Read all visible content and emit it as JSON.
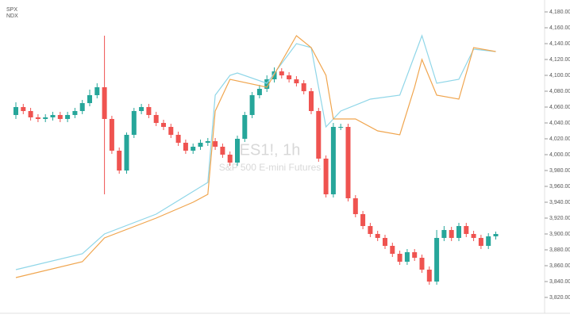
{
  "chart_data": {
    "type": "candlestick",
    "title": "ES1!, 1h",
    "subtitle": "S&P 500 E-mini Futures",
    "ylim": [
      3800,
      4190
    ],
    "yticks": [
      {
        "value": 3820,
        "label": "3,820.00"
      },
      {
        "value": 3840,
        "label": "3,840.00"
      },
      {
        "value": 3860,
        "label": "3,860.00"
      },
      {
        "value": 3880,
        "label": "3,880.00"
      },
      {
        "value": 3900,
        "label": "3,900.00"
      },
      {
        "value": 3920,
        "label": "3,920.00"
      },
      {
        "value": 3940,
        "label": "3,940.00"
      },
      {
        "value": 3960,
        "label": "3,960.00"
      },
      {
        "value": 3980,
        "label": "3,980.00"
      },
      {
        "value": 4000,
        "label": "4,000.00"
      },
      {
        "value": 4020,
        "label": "4,020.00"
      },
      {
        "value": 4040,
        "label": "4,040.00"
      },
      {
        "value": 4060,
        "label": "4,060.00"
      },
      {
        "value": 4080,
        "label": "4,080.00"
      },
      {
        "value": 4100,
        "label": "4,100.00"
      },
      {
        "value": 4120,
        "label": "4,120.00"
      },
      {
        "value": 4140,
        "label": "4,140.00"
      },
      {
        "value": 4160,
        "label": "4,160.00"
      },
      {
        "value": 4180,
        "label": "4,180.00"
      }
    ],
    "up_color": "#26a69a",
    "down_color": "#ef5350",
    "open": [
      4050,
      4060,
      4055,
      4047,
      4045,
      4047,
      4050,
      4045,
      4050,
      4055,
      4065,
      4075,
      4085,
      4045,
      4005,
      3980,
      4025,
      4055,
      4060,
      4050,
      4040,
      4035,
      4025,
      4015,
      4005,
      4010,
      4015,
      4017,
      4010,
      4000,
      3990,
      4020,
      4050,
      4075,
      4083,
      4095,
      4105,
      4100,
      4095,
      4090,
      4080,
      4055,
      3995,
      3950,
      4035,
      4035,
      3945,
      3925,
      3910,
      3900,
      3895,
      3885,
      3875,
      3865,
      3877,
      3870,
      3855,
      3840,
      3895,
      3905,
      3895,
      3910,
      3900,
      3895,
      3885,
      3897
    ],
    "close": [
      4060,
      4055,
      4047,
      4045,
      4047,
      4050,
      4045,
      4050,
      4055,
      4065,
      4075,
      4085,
      4045,
      4005,
      3980,
      4025,
      4055,
      4060,
      4050,
      4040,
      4035,
      4025,
      4015,
      4005,
      4010,
      4015,
      4017,
      4010,
      4000,
      3990,
      4020,
      4050,
      4075,
      4083,
      4095,
      4105,
      4100,
      4095,
      4090,
      4080,
      4055,
      3995,
      3950,
      4035,
      4035,
      3945,
      3925,
      3910,
      3900,
      3895,
      3885,
      3875,
      3865,
      3877,
      3870,
      3855,
      3840,
      3895,
      3905,
      3895,
      3910,
      3900,
      3895,
      3885,
      3897,
      3900
    ],
    "high": [
      4066,
      4064,
      4059,
      4051,
      4051,
      4054,
      4054,
      4054,
      4059,
      4069,
      4082,
      4090,
      4150,
      4049,
      4009,
      4028,
      4059,
      4064,
      4064,
      4054,
      4044,
      4039,
      4029,
      4019,
      4014,
      4019,
      4021,
      4021,
      4014,
      4004,
      4024,
      4054,
      4079,
      4088,
      4100,
      4110,
      4109,
      4104,
      4099,
      4094,
      4084,
      4059,
      3999,
      4040,
      4039,
      4039,
      3949,
      3929,
      3914,
      3904,
      3899,
      3889,
      3879,
      3881,
      3881,
      3874,
      3859,
      3905,
      3910,
      3909,
      3914,
      3914,
      3904,
      3899,
      3901,
      3903
    ],
    "low": [
      4045,
      4051,
      4043,
      4041,
      4041,
      4043,
      4041,
      4041,
      4046,
      4051,
      4061,
      4071,
      3950,
      4001,
      3976,
      3976,
      4021,
      4051,
      4046,
      4036,
      4031,
      4021,
      4011,
      4001,
      4001,
      4006,
      4011,
      4006,
      3996,
      3986,
      3986,
      4016,
      4046,
      4071,
      4079,
      4091,
      4096,
      4091,
      4086,
      4076,
      4051,
      3991,
      3946,
      3946,
      4031,
      3941,
      3921,
      3906,
      3896,
      3891,
      3881,
      3871,
      3861,
      3861,
      3866,
      3851,
      3836,
      3836,
      3891,
      3891,
      3891,
      3896,
      3891,
      3881,
      3881,
      3893
    ],
    "series": [
      {
        "name": "SPX",
        "color": "#8fd6e8",
        "x": [
          0,
          9,
          12,
          19,
          26,
          27,
          29,
          30,
          34,
          38,
          40,
          42,
          44,
          48,
          52,
          54,
          55,
          57,
          60,
          62,
          65
        ],
        "values": [
          3855,
          3875,
          3900,
          3925,
          3965,
          4075,
          4100,
          4103,
          4090,
          4140,
          4135,
          4035,
          4055,
          4070,
          4075,
          4125,
          4150,
          4090,
          4095,
          4133,
          4130
        ]
      },
      {
        "name": "NDX",
        "color": "#f0a54e",
        "x": [
          0,
          9,
          12,
          19,
          24,
          26,
          27,
          29,
          34,
          38,
          40,
          42,
          43,
          46,
          49,
          52,
          54,
          55,
          57,
          60,
          62,
          65
        ],
        "values": [
          3845,
          3865,
          3895,
          3920,
          3940,
          3950,
          4055,
          4095,
          4085,
          4150,
          4135,
          4100,
          4045,
          4045,
          4030,
          4025,
          4085,
          4120,
          4075,
          4070,
          4135,
          4130
        ]
      }
    ]
  }
}
